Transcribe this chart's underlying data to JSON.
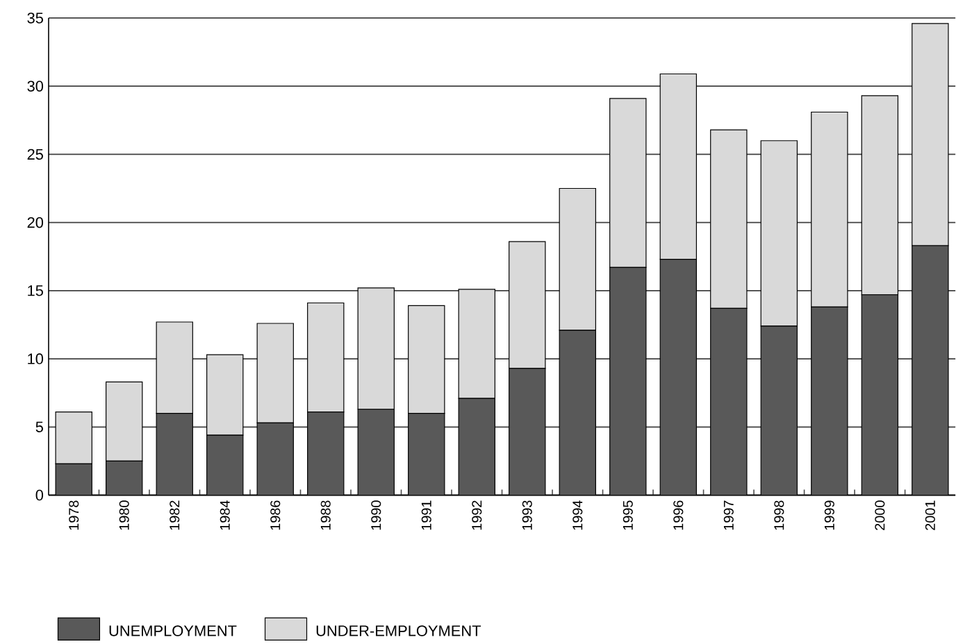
{
  "chart_data": {
    "type": "bar",
    "stacked": true,
    "categories": [
      "1978",
      "1980",
      "1982",
      "1984",
      "1986",
      "1988",
      "1990",
      "1991",
      "1992",
      "1993",
      "1994",
      "1995",
      "1996",
      "1997",
      "1998",
      "1999",
      "2000",
      "2001"
    ],
    "series": [
      {
        "name": "UNEMPLOYMENT",
        "color": "#595959",
        "values": [
          2.3,
          2.5,
          6.0,
          4.4,
          5.3,
          6.1,
          6.3,
          6.0,
          7.1,
          9.3,
          12.1,
          16.7,
          17.3,
          13.7,
          12.4,
          13.8,
          14.7,
          18.3
        ]
      },
      {
        "name": "UNDER-EMPLOYMENT",
        "color": "#d9d9d9",
        "values": [
          3.8,
          5.8,
          6.7,
          5.9,
          7.3,
          8.0,
          8.9,
          7.9,
          8.0,
          9.3,
          10.4,
          12.4,
          13.6,
          13.1,
          13.6,
          14.3,
          14.6,
          16.3
        ]
      }
    ],
    "ylim": [
      0,
      35
    ],
    "yticks": [
      0,
      5,
      10,
      15,
      20,
      25,
      30,
      35
    ],
    "grid": "y",
    "legend": "bottom"
  }
}
